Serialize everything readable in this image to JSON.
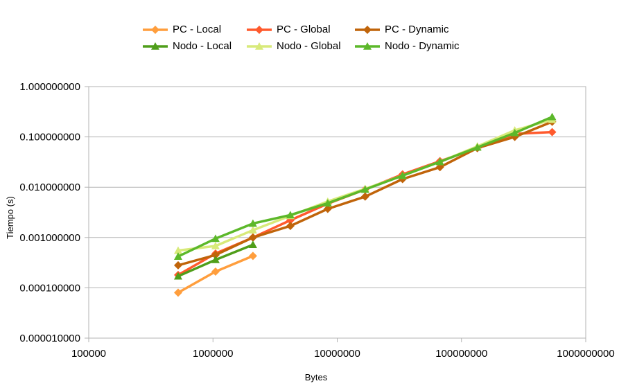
{
  "chart_data": {
    "type": "line",
    "title": "",
    "xlabel": "Bytes",
    "ylabel": "Tiempo (s)",
    "x_scale": "log",
    "y_scale": "log",
    "xlim": [
      100000,
      1000000000
    ],
    "ylim": [
      1e-05,
      1
    ],
    "grid": "horizontal major lines",
    "legend_position": "top",
    "x_ticks": [
      "100000",
      "1000000",
      "10000000",
      "100000000",
      "1000000000"
    ],
    "y_ticks": [
      "1.000000000",
      "0.100000000",
      "0.010000000",
      "0.001000000",
      "0.000100000",
      "0.000010000"
    ],
    "series": [
      {
        "name": "PC - Local",
        "color": "#ff9e3d",
        "marker": "diamond",
        "x": [
          524288,
          1048576,
          2097152
        ],
        "y": [
          8e-05,
          0.00021,
          0.00043
        ]
      },
      {
        "name": "PC - Global",
        "color": "#ff5a2d",
        "marker": "diamond",
        "x": [
          524288,
          1048576,
          2097152,
          4194304,
          8388608,
          16777216,
          33554432,
          67108864,
          134217728,
          268435456,
          536870912
        ],
        "y": [
          0.00018,
          0.00048,
          0.001,
          0.0022,
          0.0047,
          0.009,
          0.018,
          0.033,
          0.06,
          0.115,
          0.125
        ]
      },
      {
        "name": "PC - Dynamic",
        "color": "#c0640a",
        "marker": "diamond",
        "x": [
          524288,
          1048576,
          2097152,
          4194304,
          8388608,
          16777216,
          33554432,
          67108864,
          134217728,
          268435456,
          536870912
        ],
        "y": [
          0.00028,
          0.00045,
          0.001,
          0.0017,
          0.0037,
          0.0065,
          0.0145,
          0.025,
          0.06,
          0.1,
          0.2
        ]
      },
      {
        "name": "Nodo - Local",
        "color": "#4f9e1a",
        "marker": "triangle",
        "x": [
          524288,
          1048576,
          2097152
        ],
        "y": [
          0.00017,
          0.00036,
          0.00072
        ]
      },
      {
        "name": "Nodo - Global",
        "color": "#d8ea7a",
        "marker": "triangle",
        "x": [
          524288,
          1048576,
          2097152,
          4194304,
          8388608,
          16777216,
          33554432,
          67108864,
          134217728,
          268435456,
          536870912
        ],
        "y": [
          0.00055,
          0.00068,
          0.0014,
          0.0027,
          0.0052,
          0.0093,
          0.017,
          0.032,
          0.065,
          0.135,
          0.22
        ]
      },
      {
        "name": "Nodo - Dynamic",
        "color": "#5cb82a",
        "marker": "triangle",
        "x": [
          524288,
          1048576,
          2097152,
          4194304,
          8388608,
          16777216,
          33554432,
          67108864,
          134217728,
          268435456,
          536870912
        ],
        "y": [
          0.00042,
          0.00095,
          0.0019,
          0.0028,
          0.0048,
          0.009,
          0.017,
          0.032,
          0.062,
          0.12,
          0.25
        ]
      }
    ]
  }
}
